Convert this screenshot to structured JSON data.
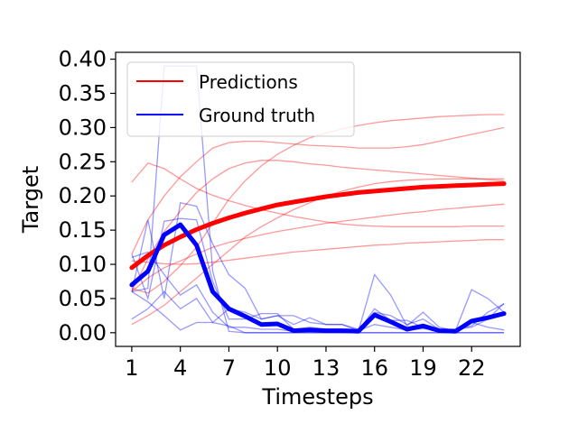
{
  "chart_data": {
    "type": "line",
    "xlabel": "Timesteps",
    "ylabel": "Target",
    "xlim": [
      0,
      25
    ],
    "ylim": [
      -0.02,
      0.41
    ],
    "xticks": [
      1,
      4,
      7,
      10,
      13,
      16,
      19,
      22
    ],
    "yticks": [
      0.0,
      0.05,
      0.1,
      0.15,
      0.2,
      0.25,
      0.3,
      0.35,
      0.4
    ],
    "ytick_labels": [
      "0.00",
      "0.05",
      "0.10",
      "0.15",
      "0.20",
      "0.25",
      "0.30",
      "0.35",
      "0.40"
    ],
    "grid": false,
    "legend": {
      "position": "top-left",
      "entries": [
        {
          "label": "Predictions",
          "color": "#ff0000"
        },
        {
          "label": "Ground truth",
          "color": "#0000ff"
        }
      ]
    },
    "x": [
      1,
      2,
      3,
      4,
      5,
      6,
      7,
      8,
      9,
      10,
      11,
      12,
      13,
      14,
      15,
      16,
      17,
      18,
      19,
      20,
      21,
      22,
      23,
      24
    ],
    "prediction_color": "#ff0000",
    "ground_truth_color": "#0000ff",
    "prediction_mean": [
      0.095,
      0.113,
      0.128,
      0.14,
      0.151,
      0.16,
      0.168,
      0.175,
      0.181,
      0.187,
      0.191,
      0.195,
      0.199,
      0.202,
      0.205,
      0.207,
      0.209,
      0.211,
      0.213,
      0.214,
      0.215,
      0.216,
      0.217,
      0.218
    ],
    "ground_truth_mean": [
      0.07,
      0.09,
      0.143,
      0.158,
      0.128,
      0.06,
      0.035,
      0.024,
      0.012,
      0.013,
      0.003,
      0.004,
      0.003,
      0.003,
      0.002,
      0.026,
      0.016,
      0.005,
      0.01,
      0.003,
      0.002,
      0.017,
      0.022,
      0.028
    ],
    "prediction_samples": [
      [
        0.22,
        0.248,
        0.24,
        0.225,
        0.211,
        0.201,
        0.193,
        0.186,
        0.18,
        0.175,
        0.17,
        0.166,
        0.162,
        0.159,
        0.157,
        0.156,
        0.155,
        0.155,
        0.155,
        0.155,
        0.155,
        0.156,
        0.156,
        0.156
      ],
      [
        0.012,
        0.025,
        0.04,
        0.06,
        0.08,
        0.1,
        0.12,
        0.14,
        0.155,
        0.168,
        0.18,
        0.19,
        0.2,
        0.207,
        0.213,
        0.218,
        0.221,
        0.223,
        0.224,
        0.225,
        0.225,
        0.225,
        0.225,
        0.225
      ],
      [
        0.06,
        0.108,
        0.148,
        0.178,
        0.205,
        0.225,
        0.24,
        0.248,
        0.252,
        0.252,
        0.25,
        0.247,
        0.245,
        0.242,
        0.24,
        0.238,
        0.236,
        0.234,
        0.232,
        0.23,
        0.228,
        0.226,
        0.224,
        0.222
      ],
      [
        0.115,
        0.165,
        0.2,
        0.228,
        0.25,
        0.27,
        0.278,
        0.28,
        0.28,
        0.278,
        0.276,
        0.274,
        0.273,
        0.272,
        0.27,
        0.27,
        0.27,
        0.272,
        0.275,
        0.28,
        0.285,
        0.29,
        0.295,
        0.3
      ],
      [
        0.065,
        0.058,
        0.075,
        0.098,
        0.125,
        0.16,
        0.195,
        0.222,
        0.244,
        0.261,
        0.274,
        0.285,
        0.292,
        0.298,
        0.303,
        0.307,
        0.31,
        0.312,
        0.314,
        0.316,
        0.317,
        0.318,
        0.319,
        0.319
      ],
      [
        0.105,
        0.103,
        0.101,
        0.1,
        0.101,
        0.103,
        0.106,
        0.109,
        0.112,
        0.115,
        0.118,
        0.12,
        0.122,
        0.124,
        0.126,
        0.128,
        0.129,
        0.131,
        0.132,
        0.133,
        0.134,
        0.135,
        0.136,
        0.136
      ],
      [
        0.06,
        0.08,
        0.095,
        0.105,
        0.115,
        0.125,
        0.132,
        0.138,
        0.143,
        0.148,
        0.152,
        0.156,
        0.16,
        0.163,
        0.166,
        0.169,
        0.172,
        0.175,
        0.177,
        0.18,
        0.182,
        0.184,
        0.186,
        0.188
      ]
    ],
    "ground_truth_samples": [
      [
        0.06,
        0.065,
        0.39,
        0.39,
        0.39,
        0.09,
        0.002,
        0.0,
        0.0,
        0.0,
        0.0,
        0.0,
        0.0,
        0.0,
        0.0,
        0.0,
        0.0,
        0.0,
        0.0,
        0.0,
        0.0,
        0.0,
        0.0,
        0.0
      ],
      [
        0.115,
        0.05,
        0.163,
        0.167,
        0.165,
        0.075,
        0.02,
        0.02,
        0.028,
        0.028,
        0.005,
        0.008,
        0.005,
        0.005,
        0.002,
        0.085,
        0.055,
        0.01,
        0.03,
        0.008,
        0.003,
        0.063,
        0.05,
        0.03
      ],
      [
        0.06,
        0.165,
        0.05,
        0.19,
        0.185,
        0.13,
        0.085,
        0.065,
        0.02,
        0.025,
        0.025,
        0.015,
        0.012,
        0.012,
        0.005,
        0.03,
        0.025,
        0.012,
        0.02,
        0.005,
        0.005,
        0.008,
        0.02,
        0.043
      ],
      [
        0.02,
        0.035,
        0.06,
        0.035,
        0.05,
        0.015,
        0.01,
        0.0,
        0.0,
        0.0,
        0.0,
        0.0,
        0.0,
        0.0,
        0.0,
        0.0,
        0.0,
        0.0,
        0.0,
        0.0,
        0.0,
        0.0,
        0.0,
        0.0
      ],
      [
        0.06,
        0.045,
        0.025,
        0.004,
        0.015,
        0.015,
        0.035,
        0.03,
        0.02,
        0.025,
        0.012,
        0.022,
        0.012,
        0.012,
        0.003,
        0.035,
        0.018,
        0.018,
        0.008,
        0.003,
        0.005,
        0.01,
        0.03,
        0.042
      ],
      [
        0.11,
        0.118,
        0.085,
        0.055,
        0.07,
        0.03,
        0.008,
        0.008,
        0.005,
        0.005,
        0.002,
        0.004,
        0.004,
        0.004,
        0.003,
        0.012,
        0.008,
        0.004,
        0.006,
        0.004,
        0.002,
        0.015,
        0.008,
        0.004
      ]
    ]
  }
}
